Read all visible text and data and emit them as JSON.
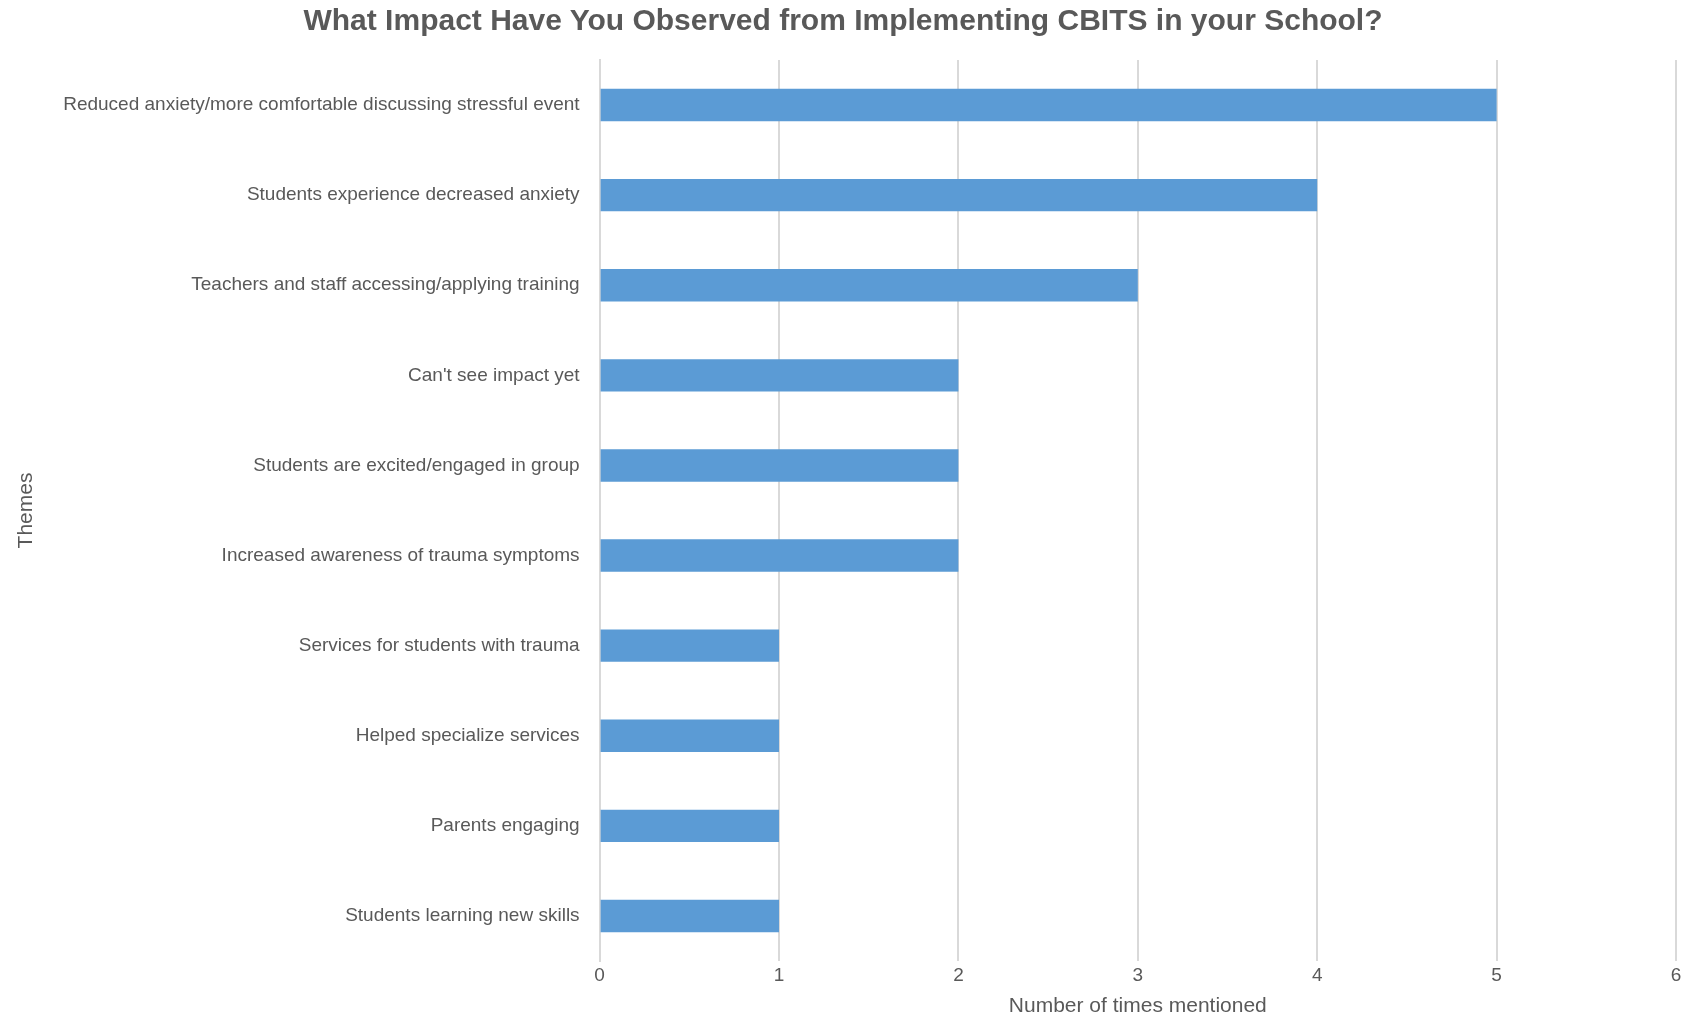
{
  "chart_data": {
    "type": "bar",
    "orientation": "horizontal",
    "title": "What Impact Have You Observed from Implementing CBITS in your School?",
    "xlabel": "Number of times mentioned",
    "ylabel": "Themes",
    "categories": [
      "Reduced anxiety/more comfortable discussing stressful event",
      "Students experience decreased anxiety",
      "Teachers and staff accessing/applying training",
      "Can't see impact yet",
      "Students are excited/engaged in group",
      "Increased awareness of trauma symptoms",
      "Services for students with trauma",
      "Helped specialize services",
      "Parents engaging",
      "Students learning new skills"
    ],
    "values": [
      5,
      4,
      3,
      2,
      2,
      2,
      1,
      1,
      1,
      1
    ],
    "color": "#5b9bd5",
    "xlim": [
      0,
      6
    ],
    "xticks": [
      0,
      1,
      2,
      3,
      4,
      5,
      6
    ],
    "grid": "x",
    "legend": false
  }
}
